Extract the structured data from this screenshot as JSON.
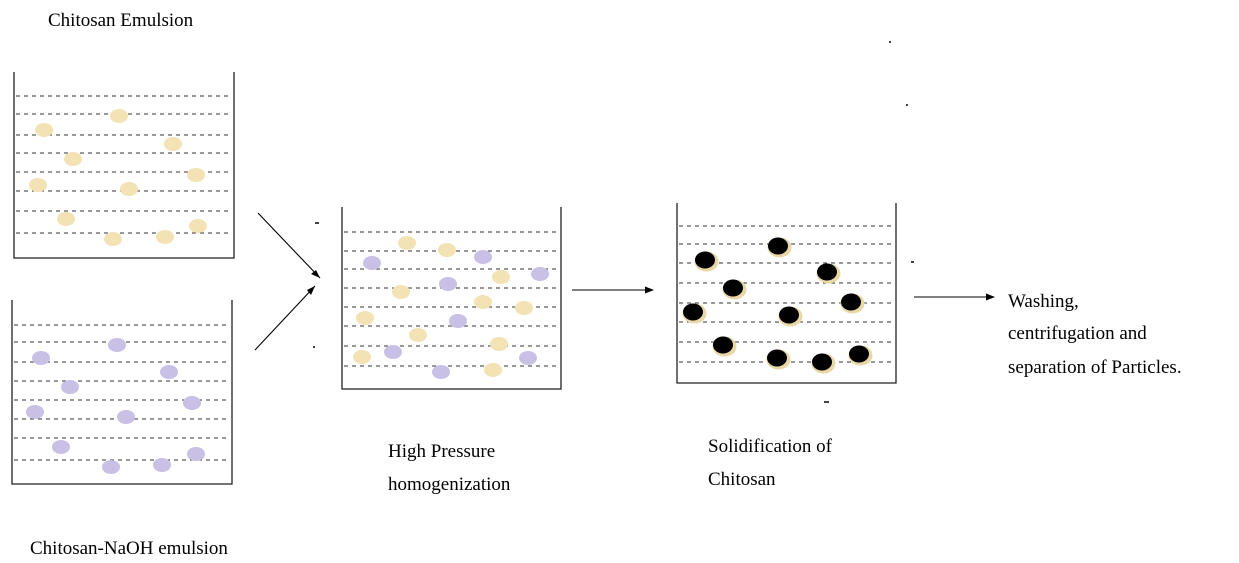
{
  "labels": {
    "top_beaker": "Chitosan Emulsion",
    "bottom_beaker": "Chitosan-NaOH emulsion",
    "homogenization_line1": "High Pressure",
    "homogenization_line2": "homogenization",
    "solidification_line1": "Solidification of",
    "solidification_line2": "Chitosan",
    "final_line1": "Washing,",
    "final_line2": "centrifugation and",
    "final_line3": "separation of Particles."
  },
  "colors": {
    "chitosan_droplet": "#f2e2b4",
    "naoh_droplet": "#c9c0e6",
    "solid_particle_core": "#000000",
    "solid_particle_ring": "#e8d8a8",
    "dashed_line": "#333333"
  }
}
